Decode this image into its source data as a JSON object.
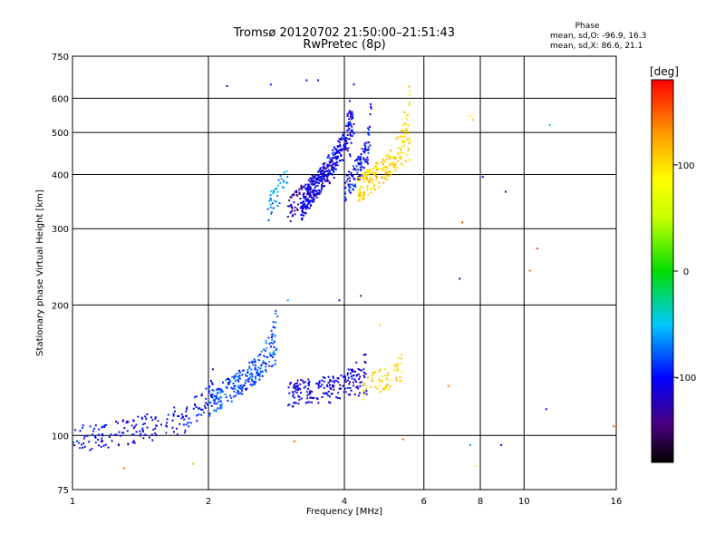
{
  "chart_data": {
    "type": "scatter",
    "title": "Tromsø 20120702 21:50:00–21:51:43",
    "subtitle": "RwPretec (8p)",
    "xlabel": "Frequency [MHz]",
    "ylabel": "Stationary phase Virtual Height [km]",
    "x_scale": "log",
    "y_scale": "log",
    "xlim": [
      1,
      16
    ],
    "ylim": [
      75,
      750
    ],
    "x_ticks": [
      1,
      2,
      4,
      6,
      8,
      10,
      16
    ],
    "y_ticks": [
      75,
      100,
      200,
      300,
      400,
      500,
      600,
      750
    ],
    "grid": true,
    "colorbar": {
      "label": "[deg]",
      "range": [
        -180,
        180
      ],
      "ticks": [
        100,
        0,
        -100
      ]
    },
    "stats": {
      "heading": "Phase",
      "line_o": "mean, sd,O: -96.9, 16.3",
      "line_x": "mean, sd,X: 86.6, 21.1"
    },
    "traces": [
      {
        "x0": 1.0,
        "x1": 1.7,
        "y0": 98,
        "y1": 106,
        "ymax": 115,
        "phase": -105,
        "n": 130
      },
      {
        "x0": 1.7,
        "x1": 2.05,
        "y0": 104,
        "y1": 125,
        "ymax": 135,
        "phase": -100,
        "n": 60
      },
      {
        "x0": 2.0,
        "x1": 2.85,
        "y0": 118,
        "y1": 150,
        "ymax": 195,
        "phase": -80,
        "n": 260
      },
      {
        "x0": 3.0,
        "x1": 4.5,
        "y0": 125,
        "y1": 130,
        "ymax": 158,
        "phase": -110,
        "n": 200
      },
      {
        "x0": 4.4,
        "x1": 5.4,
        "y0": 128,
        "y1": 140,
        "ymax": 150,
        "phase": 105,
        "n": 60
      },
      {
        "x0": 2.7,
        "x1": 3.0,
        "y0": 330,
        "y1": 395,
        "ymax": 400,
        "phase": -60,
        "n": 40
      },
      {
        "x0": 3.0,
        "x1": 3.8,
        "y0": 330,
        "y1": 410,
        "ymax": 420,
        "phase": -130,
        "n": 120
      },
      {
        "x0": 3.2,
        "x1": 4.2,
        "y0": 335,
        "y1": 480,
        "ymax": 640,
        "phase": -105,
        "n": 320
      },
      {
        "x0": 4.0,
        "x1": 4.6,
        "y0": 370,
        "y1": 450,
        "ymax": 640,
        "phase": -100,
        "n": 120
      },
      {
        "x0": 4.3,
        "x1": 5.6,
        "y0": 370,
        "y1": 450,
        "ymax": 640,
        "phase": 105,
        "n": 220
      }
    ],
    "scatter_points": [
      {
        "x": 2.2,
        "y": 640,
        "phase": -100
      },
      {
        "x": 2.75,
        "y": 645,
        "phase": -90
      },
      {
        "x": 3.3,
        "y": 660,
        "phase": -100
      },
      {
        "x": 3.5,
        "y": 660,
        "phase": -110
      },
      {
        "x": 7.3,
        "y": 310,
        "phase": 160
      },
      {
        "x": 7.2,
        "y": 230,
        "phase": -100
      },
      {
        "x": 7.6,
        "y": 545,
        "phase": 90
      },
      {
        "x": 7.7,
        "y": 535,
        "phase": 110
      },
      {
        "x": 8.1,
        "y": 395,
        "phase": -110
      },
      {
        "x": 9.1,
        "y": 365,
        "phase": -110
      },
      {
        "x": 10.7,
        "y": 270,
        "phase": 160
      },
      {
        "x": 10.3,
        "y": 240,
        "phase": 150
      },
      {
        "x": 11.4,
        "y": 520,
        "phase": -40
      },
      {
        "x": 11.2,
        "y": 115,
        "phase": -100
      },
      {
        "x": 15.8,
        "y": 105,
        "phase": 150
      },
      {
        "x": 7.8,
        "y": 85,
        "phase": 80
      },
      {
        "x": 7.6,
        "y": 95,
        "phase": -60
      },
      {
        "x": 8.9,
        "y": 95,
        "phase": -100
      },
      {
        "x": 1.3,
        "y": 84,
        "phase": 150
      },
      {
        "x": 1.85,
        "y": 86,
        "phase": 120
      },
      {
        "x": 3.1,
        "y": 97,
        "phase": 150
      },
      {
        "x": 5.4,
        "y": 98,
        "phase": 150
      },
      {
        "x": 3.0,
        "y": 205,
        "phase": -60
      },
      {
        "x": 3.9,
        "y": 205,
        "phase": -100
      },
      {
        "x": 4.35,
        "y": 210,
        "phase": -140
      },
      {
        "x": 4.8,
        "y": 180,
        "phase": 110
      },
      {
        "x": 6.8,
        "y": 130,
        "phase": 140
      },
      {
        "x": 3.75,
        "y": 415,
        "phase": -140
      }
    ]
  }
}
